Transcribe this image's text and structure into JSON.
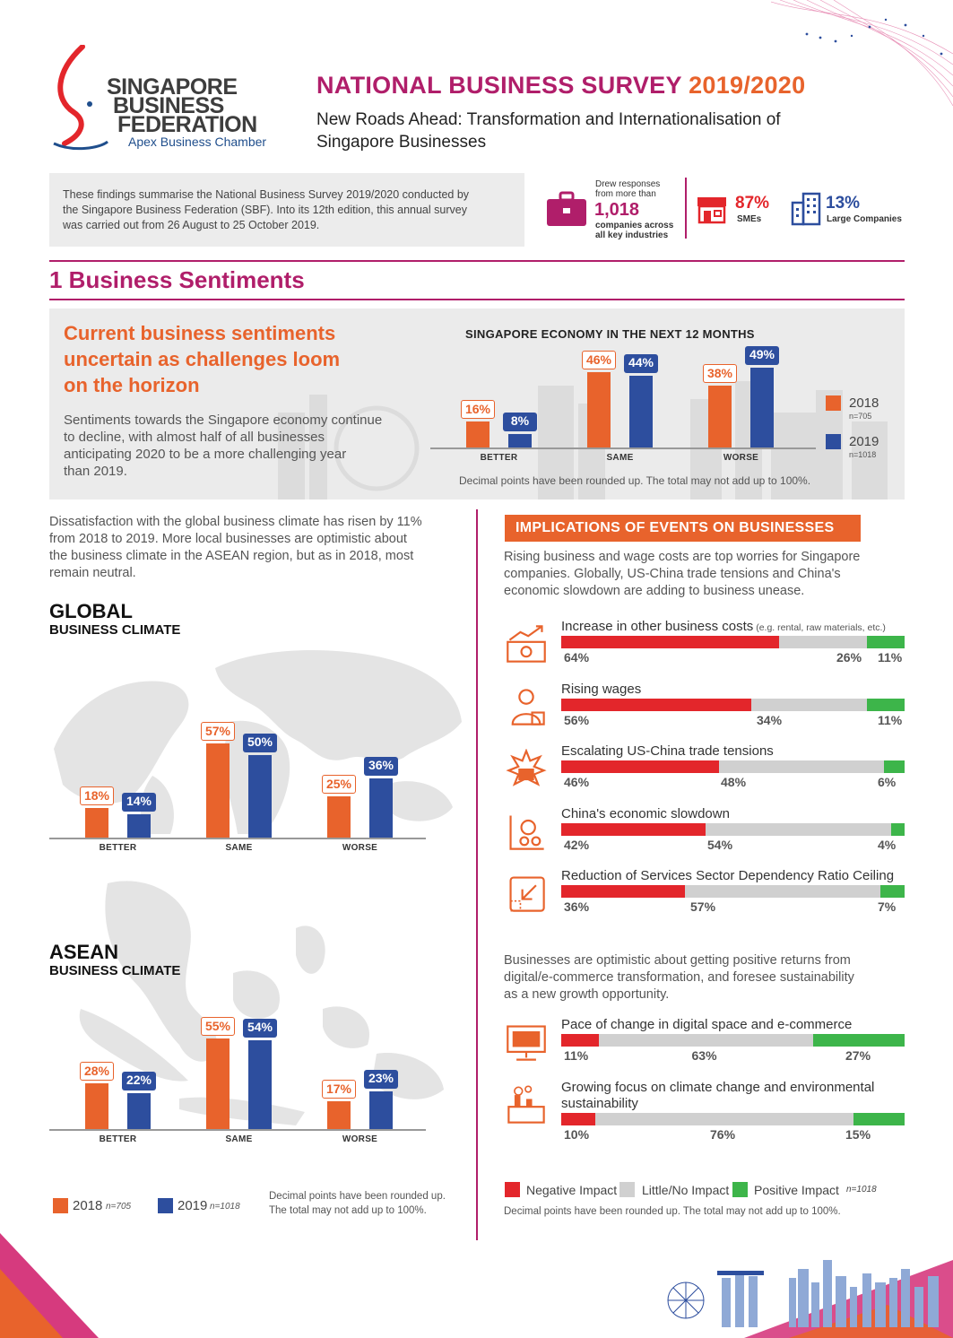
{
  "header": {
    "logo_line1": "SINGAPORE",
    "logo_line2": "BUSINESS",
    "logo_line3": "FEDERATION",
    "logo_tagline": "Apex Business Chamber",
    "title": "NATIONAL BUSINESS SURVEY",
    "title_year": "2019/2020",
    "subtitle_line1": "New Roads Ahead: Transformation and Internationalisation of",
    "subtitle_line2": "Singapore Businesses"
  },
  "intro": {
    "line1": "These findings summarise the National Business Survey 2019/2020 conducted by",
    "line2": "the Singapore Business Federation (SBF). Into its 12th edition, this annual survey",
    "line3": "was carried out from 26 August to 25 October 2019."
  },
  "stats": {
    "drew_line1": "Drew responses",
    "drew_line2": "from more than",
    "respondents": "1,018",
    "resp_line1": "companies across",
    "resp_line2": "all key industries",
    "sme_pct": "87%",
    "sme_label": "SMEs",
    "large_pct": "13%",
    "large_label": "Large Companies"
  },
  "section1": {
    "title": "1 Business Sentiments",
    "headline_line1": "Current business sentiments",
    "headline_line2": "uncertain as challenges loom",
    "headline_line3": "on the horizon",
    "body_line1": "Sentiments towards the Singapore economy continue",
    "body_line2": "to decline, with almost half of all businesses",
    "body_line3": "anticipating 2020 to be a more challenging year",
    "body_line4": "than 2019.",
    "chart_title": "SINGAPORE ECONOMY IN THE NEXT 12 MONTHS",
    "chart_note": "Decimal points have been rounded up. The total may not add up to 100%.",
    "legend_2018": "2018",
    "legend_2018_n": "n=705",
    "legend_2019": "2019",
    "legend_2019_n": "n=1018"
  },
  "left": {
    "para_line1": "Dissatisfaction with the global business climate has risen by 11%",
    "para_line2": "from 2018 to 2019. More local businesses are optimistic about",
    "para_line3": "the business climate in the ASEAN region, but as in 2018, most",
    "para_line4": "remain neutral.",
    "global_title": "GLOBAL",
    "global_sub": "BUSINESS CLIMATE",
    "asean_title": "ASEAN",
    "asean_sub": "BUSINESS CLIMATE",
    "legend_2018": "2018",
    "legend_2018_n": "n=705",
    "legend_2019": "2019",
    "legend_2019_n": "n=1018",
    "note_line1": "Decimal points have been rounded up.",
    "note_line2": "The total may not add up to 100%."
  },
  "right": {
    "banner": "IMPLICATIONS OF EVENTS ON BUSINESSES",
    "intro_line1": "Rising business and wage costs are top worries for Singapore",
    "intro_line2": "companies. Globally, US-China trade tensions and China's",
    "intro_line3": "economic slowdown are adding to business unease.",
    "para2_line1": "Businesses are optimistic about getting positive returns from",
    "para2_line2": "digital/e-commerce transformation, and foresee sustainability",
    "para2_line3": "as a new growth opportunity.",
    "legend_neg": "Negative Impact",
    "legend_little": "Little/No Impact",
    "legend_pos": "Positive Impact",
    "legend_n": "n=1018",
    "note": "Decimal points have been rounded up. The total may not add up to 100%."
  },
  "impacts": [
    {
      "label": "Increase in other business costs",
      "detail": "(e.g. rental, raw materials, etc.)",
      "neg": 64,
      "little": 26,
      "pos": 11,
      "neg_t": "64%",
      "little_t": "26%",
      "pos_t": "11%"
    },
    {
      "label": "Rising wages",
      "detail": "",
      "neg": 56,
      "little": 34,
      "pos": 11,
      "neg_t": "56%",
      "little_t": "34%",
      "pos_t": "11%"
    },
    {
      "label": "Escalating US-China trade tensions",
      "detail": "",
      "neg": 46,
      "little": 48,
      "pos": 6,
      "neg_t": "46%",
      "little_t": "48%",
      "pos_t": "6%"
    },
    {
      "label": "China's economic slowdown",
      "detail": "",
      "neg": 42,
      "little": 54,
      "pos": 4,
      "neg_t": "42%",
      "little_t": "54%",
      "pos_t": "4%"
    },
    {
      "label": "Reduction of Services Sector Dependency Ratio Ceiling",
      "detail": "",
      "neg": 36,
      "little": 57,
      "pos": 7,
      "neg_t": "36%",
      "little_t": "57%",
      "pos_t": "7%"
    },
    {
      "label": "Pace of change in digital space and e-commerce",
      "detail": "",
      "neg": 11,
      "little": 63,
      "pos": 27,
      "neg_t": "11%",
      "little_t": "63%",
      "pos_t": "27%"
    },
    {
      "label": "Growing focus on climate change and environmental",
      "label2": "sustainability",
      "detail": "",
      "neg": 10,
      "little": 76,
      "pos": 15,
      "neg_t": "10%",
      "little_t": "76%",
      "pos_t": "15%"
    }
  ],
  "chart_data": [
    {
      "type": "bar",
      "title": "SINGAPORE ECONOMY IN THE NEXT 12 MONTHS",
      "categories": [
        "BETTER",
        "SAME",
        "WORSE"
      ],
      "series": [
        {
          "name": "2018",
          "values": [
            16,
            46,
            38
          ],
          "labels": [
            "16%",
            "46%",
            "38%"
          ]
        },
        {
          "name": "2019",
          "values": [
            8,
            44,
            49
          ],
          "labels": [
            "8%",
            "44%",
            "49%"
          ]
        }
      ],
      "ylim": [
        0,
        55
      ]
    },
    {
      "type": "bar",
      "title": "GLOBAL BUSINESS CLIMATE",
      "categories": [
        "BETTER",
        "SAME",
        "WORSE"
      ],
      "series": [
        {
          "name": "2018",
          "values": [
            18,
            57,
            25
          ],
          "labels": [
            "18%",
            "57%",
            "25%"
          ]
        },
        {
          "name": "2019",
          "values": [
            14,
            50,
            36
          ],
          "labels": [
            "14%",
            "50%",
            "36%"
          ]
        }
      ],
      "ylim": [
        0,
        60
      ]
    },
    {
      "type": "bar",
      "title": "ASEAN BUSINESS CLIMATE",
      "categories": [
        "BETTER",
        "SAME",
        "WORSE"
      ],
      "series": [
        {
          "name": "2018",
          "values": [
            28,
            55,
            17
          ],
          "labels": [
            "28%",
            "55%",
            "17%"
          ]
        },
        {
          "name": "2019",
          "values": [
            22,
            54,
            23
          ],
          "labels": [
            "22%",
            "54%",
            "23%"
          ]
        }
      ],
      "ylim": [
        0,
        60
      ]
    }
  ],
  "colors": {
    "magenta": "#b01e6a",
    "orange": "#e8632c",
    "navy": "#2d4e9e",
    "negative": "#e3262b",
    "little": "#d0d0d0",
    "positive": "#3db54a"
  }
}
